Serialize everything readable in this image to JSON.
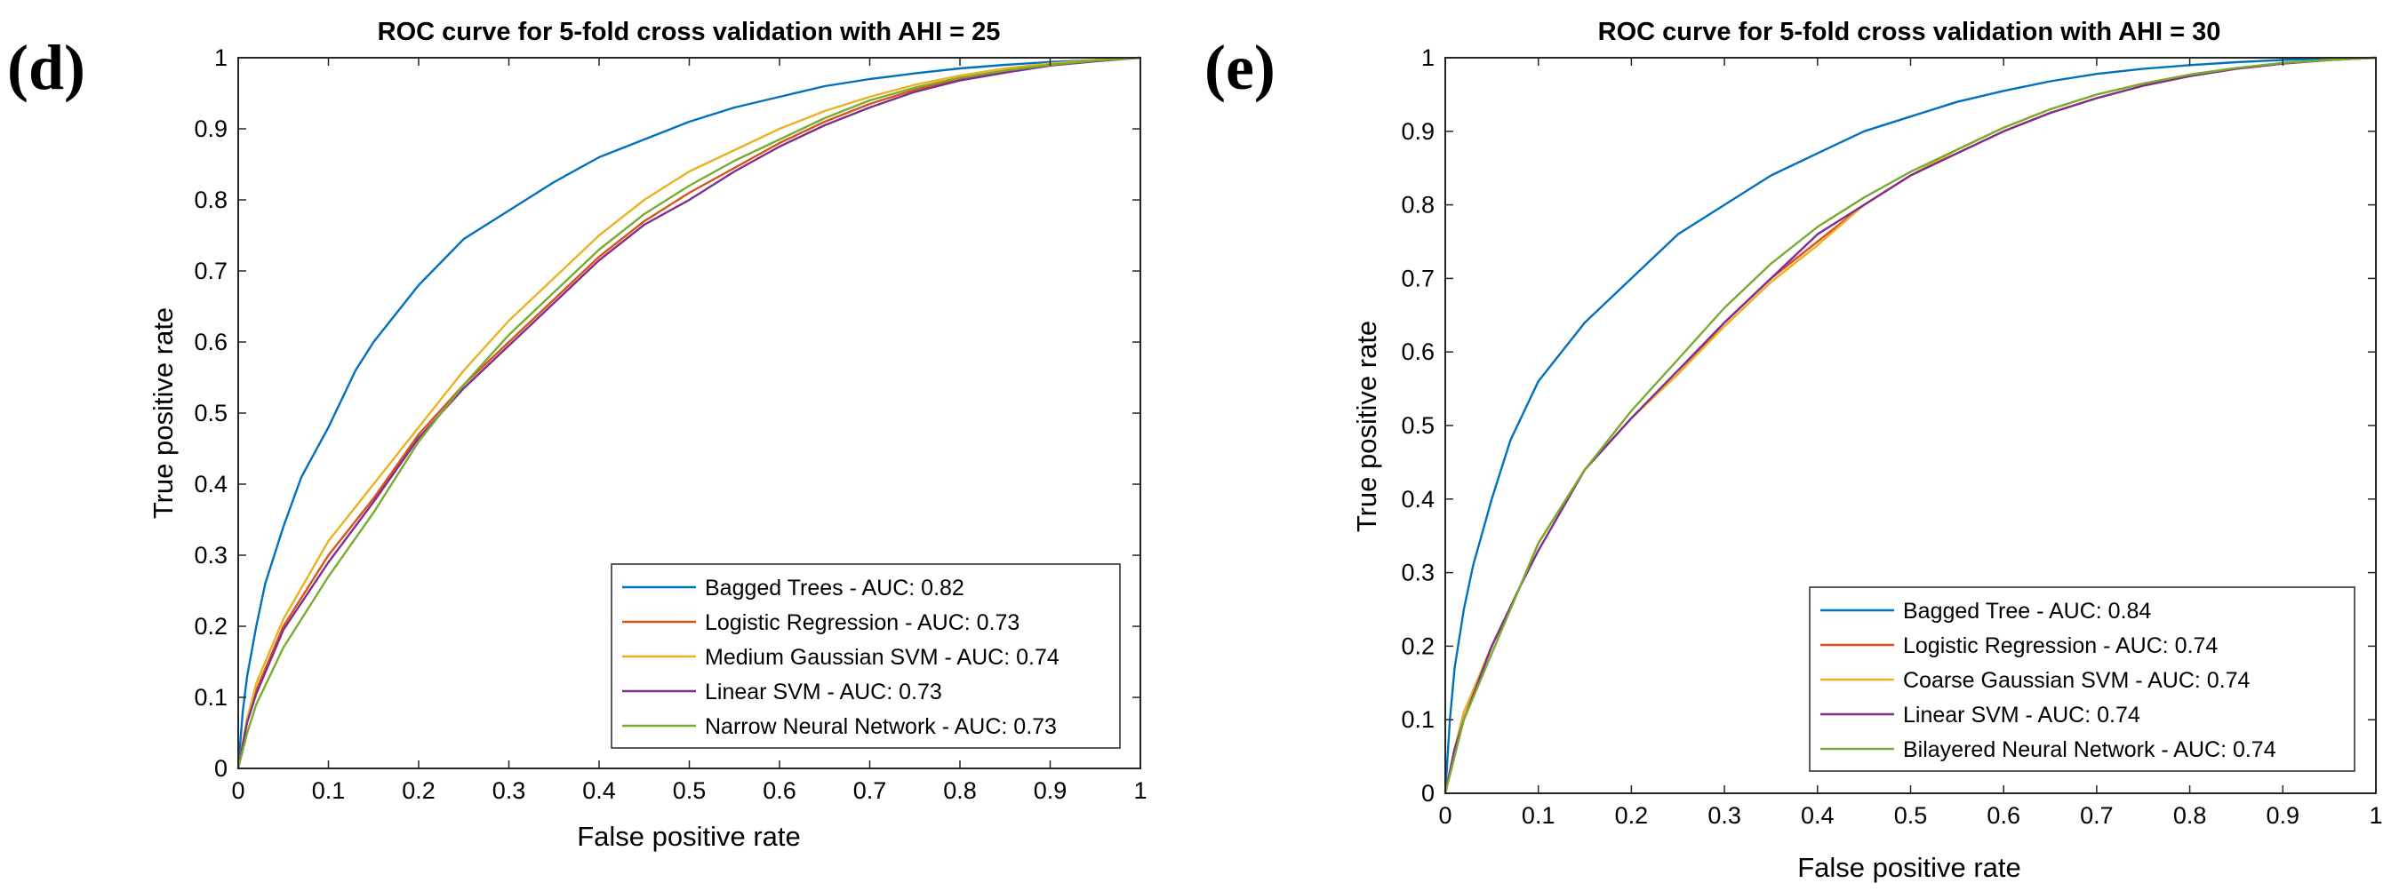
{
  "chart_data": [
    {
      "type": "line",
      "panel_label": "(d)",
      "title": "ROC curve for 5-fold cross validation with AHI = 25",
      "xlabel": "False positive rate",
      "ylabel": "True positive rate",
      "xlim": [
        0,
        1
      ],
      "ylim": [
        0,
        1
      ],
      "x_ticks": [
        "0",
        "0.1",
        "0.2",
        "0.3",
        "0.4",
        "0.5",
        "0.6",
        "0.7",
        "0.8",
        "0.9",
        "1"
      ],
      "y_ticks": [
        "0",
        "0.1",
        "0.2",
        "0.3",
        "0.4",
        "0.5",
        "0.6",
        "0.7",
        "0.8",
        "0.9",
        "1"
      ],
      "grid": false,
      "legend_position": "bottom-right",
      "series": [
        {
          "name": "Bagged Trees - AUC: 0.82",
          "color": "#0072BD",
          "points": [
            [
              0,
              0
            ],
            [
              0.005,
              0.08
            ],
            [
              0.01,
              0.13
            ],
            [
              0.02,
              0.2
            ],
            [
              0.03,
              0.26
            ],
            [
              0.04,
              0.3
            ],
            [
              0.05,
              0.34
            ],
            [
              0.07,
              0.41
            ],
            [
              0.1,
              0.48
            ],
            [
              0.13,
              0.56
            ],
            [
              0.15,
              0.6
            ],
            [
              0.2,
              0.68
            ],
            [
              0.25,
              0.745
            ],
            [
              0.3,
              0.785
            ],
            [
              0.35,
              0.825
            ],
            [
              0.4,
              0.86
            ],
            [
              0.45,
              0.885
            ],
            [
              0.5,
              0.91
            ],
            [
              0.55,
              0.93
            ],
            [
              0.6,
              0.945
            ],
            [
              0.65,
              0.96
            ],
            [
              0.7,
              0.97
            ],
            [
              0.75,
              0.978
            ],
            [
              0.8,
              0.985
            ],
            [
              0.85,
              0.99
            ],
            [
              0.9,
              0.994
            ],
            [
              0.95,
              0.997
            ],
            [
              1,
              1
            ]
          ]
        },
        {
          "name": "Logistic Regression - AUC: 0.73",
          "color": "#D95319",
          "points": [
            [
              0,
              0
            ],
            [
              0.01,
              0.07
            ],
            [
              0.02,
              0.11
            ],
            [
              0.05,
              0.2
            ],
            [
              0.1,
              0.3
            ],
            [
              0.15,
              0.38
            ],
            [
              0.2,
              0.47
            ],
            [
              0.25,
              0.54
            ],
            [
              0.3,
              0.6
            ],
            [
              0.35,
              0.66
            ],
            [
              0.4,
              0.72
            ],
            [
              0.45,
              0.77
            ],
            [
              0.5,
              0.81
            ],
            [
              0.55,
              0.845
            ],
            [
              0.6,
              0.88
            ],
            [
              0.65,
              0.91
            ],
            [
              0.7,
              0.935
            ],
            [
              0.75,
              0.955
            ],
            [
              0.8,
              0.97
            ],
            [
              0.85,
              0.98
            ],
            [
              0.9,
              0.99
            ],
            [
              0.95,
              0.996
            ],
            [
              1,
              1
            ]
          ]
        },
        {
          "name": "Medium Gaussian SVM - AUC: 0.74",
          "color": "#EDB120",
          "points": [
            [
              0,
              0
            ],
            [
              0.01,
              0.07
            ],
            [
              0.02,
              0.12
            ],
            [
              0.05,
              0.21
            ],
            [
              0.1,
              0.32
            ],
            [
              0.15,
              0.4
            ],
            [
              0.2,
              0.48
            ],
            [
              0.25,
              0.56
            ],
            [
              0.3,
              0.63
            ],
            [
              0.35,
              0.69
            ],
            [
              0.4,
              0.75
            ],
            [
              0.45,
              0.8
            ],
            [
              0.5,
              0.84
            ],
            [
              0.55,
              0.87
            ],
            [
              0.6,
              0.9
            ],
            [
              0.65,
              0.925
            ],
            [
              0.7,
              0.945
            ],
            [
              0.75,
              0.962
            ],
            [
              0.8,
              0.975
            ],
            [
              0.85,
              0.985
            ],
            [
              0.9,
              0.992
            ],
            [
              0.95,
              0.997
            ],
            [
              1,
              1
            ]
          ]
        },
        {
          "name": "Linear SVM - AUC: 0.73",
          "color": "#7E2F8E",
          "points": [
            [
              0,
              0
            ],
            [
              0.01,
              0.065
            ],
            [
              0.02,
              0.105
            ],
            [
              0.05,
              0.195
            ],
            [
              0.1,
              0.29
            ],
            [
              0.15,
              0.375
            ],
            [
              0.2,
              0.465
            ],
            [
              0.25,
              0.535
            ],
            [
              0.3,
              0.595
            ],
            [
              0.35,
              0.655
            ],
            [
              0.4,
              0.715
            ],
            [
              0.45,
              0.765
            ],
            [
              0.5,
              0.8
            ],
            [
              0.55,
              0.84
            ],
            [
              0.6,
              0.875
            ],
            [
              0.65,
              0.905
            ],
            [
              0.7,
              0.93
            ],
            [
              0.75,
              0.952
            ],
            [
              0.8,
              0.968
            ],
            [
              0.85,
              0.979
            ],
            [
              0.9,
              0.989
            ],
            [
              0.95,
              0.995
            ],
            [
              1,
              1
            ]
          ]
        },
        {
          "name": "Narrow Neural Network - AUC: 0.73",
          "color": "#77AC30",
          "points": [
            [
              0,
              0
            ],
            [
              0.01,
              0.05
            ],
            [
              0.02,
              0.09
            ],
            [
              0.05,
              0.17
            ],
            [
              0.1,
              0.27
            ],
            [
              0.15,
              0.36
            ],
            [
              0.2,
              0.46
            ],
            [
              0.25,
              0.54
            ],
            [
              0.3,
              0.61
            ],
            [
              0.35,
              0.67
            ],
            [
              0.4,
              0.73
            ],
            [
              0.45,
              0.78
            ],
            [
              0.5,
              0.82
            ],
            [
              0.55,
              0.855
            ],
            [
              0.6,
              0.885
            ],
            [
              0.65,
              0.915
            ],
            [
              0.7,
              0.94
            ],
            [
              0.75,
              0.958
            ],
            [
              0.8,
              0.972
            ],
            [
              0.85,
              0.982
            ],
            [
              0.9,
              0.99
            ],
            [
              0.95,
              0.996
            ],
            [
              1,
              1
            ]
          ]
        }
      ]
    },
    {
      "type": "line",
      "panel_label": "(e)",
      "title": "ROC curve for 5-fold cross validation with AHI = 30",
      "xlabel": "False positive rate",
      "ylabel": "True positive rate",
      "xlim": [
        0,
        1
      ],
      "ylim": [
        0,
        1
      ],
      "x_ticks": [
        "0",
        "0.1",
        "0.2",
        "0.3",
        "0.4",
        "0.5",
        "0.6",
        "0.7",
        "0.8",
        "0.9",
        "1"
      ],
      "y_ticks": [
        "0",
        "0.1",
        "0.2",
        "0.3",
        "0.4",
        "0.5",
        "0.6",
        "0.7",
        "0.8",
        "0.9",
        "1"
      ],
      "grid": false,
      "legend_position": "bottom-right",
      "series": [
        {
          "name": "Bagged Tree - AUC: 0.84",
          "color": "#0072BD",
          "points": [
            [
              0,
              0
            ],
            [
              0.005,
              0.1
            ],
            [
              0.01,
              0.17
            ],
            [
              0.02,
              0.25
            ],
            [
              0.03,
              0.31
            ],
            [
              0.05,
              0.4
            ],
            [
              0.07,
              0.48
            ],
            [
              0.1,
              0.56
            ],
            [
              0.15,
              0.64
            ],
            [
              0.2,
              0.7
            ],
            [
              0.25,
              0.76
            ],
            [
              0.3,
              0.8
            ],
            [
              0.35,
              0.84
            ],
            [
              0.4,
              0.87
            ],
            [
              0.45,
              0.9
            ],
            [
              0.5,
              0.92
            ],
            [
              0.55,
              0.94
            ],
            [
              0.6,
              0.955
            ],
            [
              0.65,
              0.968
            ],
            [
              0.7,
              0.978
            ],
            [
              0.75,
              0.985
            ],
            [
              0.8,
              0.99
            ],
            [
              0.85,
              0.994
            ],
            [
              0.9,
              0.997
            ],
            [
              0.95,
              0.999
            ],
            [
              1,
              1
            ]
          ]
        },
        {
          "name": "Logistic Regression - AUC: 0.74",
          "color": "#D95319",
          "points": [
            [
              0,
              0
            ],
            [
              0.01,
              0.06
            ],
            [
              0.02,
              0.11
            ],
            [
              0.05,
              0.2
            ],
            [
              0.08,
              0.28
            ],
            [
              0.1,
              0.34
            ],
            [
              0.15,
              0.44
            ],
            [
              0.2,
              0.51
            ],
            [
              0.25,
              0.57
            ],
            [
              0.3,
              0.64
            ],
            [
              0.35,
              0.7
            ],
            [
              0.4,
              0.75
            ],
            [
              0.45,
              0.8
            ],
            [
              0.5,
              0.84
            ],
            [
              0.55,
              0.87
            ],
            [
              0.6,
              0.9
            ],
            [
              0.65,
              0.925
            ],
            [
              0.7,
              0.945
            ],
            [
              0.75,
              0.962
            ],
            [
              0.8,
              0.975
            ],
            [
              0.85,
              0.985
            ],
            [
              0.9,
              0.992
            ],
            [
              0.95,
              0.997
            ],
            [
              1,
              1
            ]
          ]
        },
        {
          "name": "Coarse Gaussian SVM - AUC: 0.74",
          "color": "#EDB120",
          "points": [
            [
              0,
              0
            ],
            [
              0.01,
              0.06
            ],
            [
              0.02,
              0.11
            ],
            [
              0.05,
              0.2
            ],
            [
              0.08,
              0.28
            ],
            [
              0.1,
              0.34
            ],
            [
              0.15,
              0.44
            ],
            [
              0.2,
              0.51
            ],
            [
              0.25,
              0.57
            ],
            [
              0.3,
              0.635
            ],
            [
              0.35,
              0.695
            ],
            [
              0.4,
              0.745
            ],
            [
              0.45,
              0.8
            ],
            [
              0.5,
              0.84
            ],
            [
              0.55,
              0.875
            ],
            [
              0.6,
              0.905
            ],
            [
              0.65,
              0.93
            ],
            [
              0.7,
              0.95
            ],
            [
              0.75,
              0.965
            ],
            [
              0.8,
              0.977
            ],
            [
              0.85,
              0.986
            ],
            [
              0.9,
              0.993
            ],
            [
              0.95,
              0.997
            ],
            [
              1,
              1
            ]
          ]
        },
        {
          "name": "Linear SVM - AUC: 0.74",
          "color": "#7E2F8E",
          "points": [
            [
              0,
              0
            ],
            [
              0.01,
              0.06
            ],
            [
              0.02,
              0.1
            ],
            [
              0.05,
              0.2
            ],
            [
              0.08,
              0.28
            ],
            [
              0.1,
              0.33
            ],
            [
              0.15,
              0.44
            ],
            [
              0.2,
              0.51
            ],
            [
              0.25,
              0.575
            ],
            [
              0.3,
              0.64
            ],
            [
              0.35,
              0.7
            ],
            [
              0.4,
              0.76
            ],
            [
              0.45,
              0.8
            ],
            [
              0.5,
              0.84
            ],
            [
              0.55,
              0.87
            ],
            [
              0.6,
              0.9
            ],
            [
              0.65,
              0.925
            ],
            [
              0.7,
              0.945
            ],
            [
              0.75,
              0.962
            ],
            [
              0.8,
              0.975
            ],
            [
              0.85,
              0.985
            ],
            [
              0.9,
              0.992
            ],
            [
              0.95,
              0.997
            ],
            [
              1,
              1
            ]
          ]
        },
        {
          "name": "Bilayered Neural Network - AUC: 0.74",
          "color": "#77AC30",
          "points": [
            [
              0,
              0
            ],
            [
              0.01,
              0.05
            ],
            [
              0.02,
              0.1
            ],
            [
              0.05,
              0.19
            ],
            [
              0.08,
              0.28
            ],
            [
              0.1,
              0.34
            ],
            [
              0.15,
              0.44
            ],
            [
              0.2,
              0.52
            ],
            [
              0.25,
              0.59
            ],
            [
              0.3,
              0.66
            ],
            [
              0.35,
              0.72
            ],
            [
              0.4,
              0.77
            ],
            [
              0.45,
              0.81
            ],
            [
              0.5,
              0.845
            ],
            [
              0.55,
              0.875
            ],
            [
              0.6,
              0.905
            ],
            [
              0.65,
              0.93
            ],
            [
              0.7,
              0.95
            ],
            [
              0.75,
              0.965
            ],
            [
              0.8,
              0.977
            ],
            [
              0.85,
              0.986
            ],
            [
              0.9,
              0.993
            ],
            [
              0.95,
              0.997
            ],
            [
              1,
              1
            ]
          ]
        }
      ]
    }
  ]
}
